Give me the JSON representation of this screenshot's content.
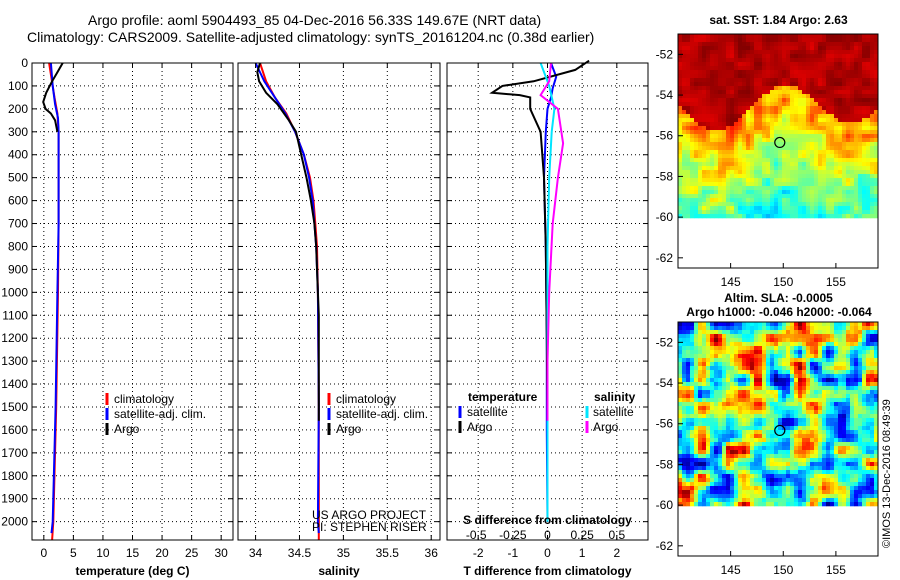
{
  "title": {
    "line1": "Argo profile: aoml 5904493_85 04-Dec-2016 56.33S 149.67E (NRT data)",
    "line2": "Climatology: CARS2009. Satellite-adjusted climatology: synTS_20161204.nc (0.38d earlier)"
  },
  "colors": {
    "climatology": "#ff0000",
    "satellite": "#0000ff",
    "argo": "#000000",
    "sat_salinity": "#00e5ff",
    "argo_salinity": "#ff00ff"
  },
  "chart_data": [
    {
      "id": "temperature",
      "type": "line",
      "xlabel": "temperature (deg C)",
      "ylabel": "",
      "xlim": [
        -2,
        32
      ],
      "ylim": [
        2080,
        0
      ],
      "xticks": [
        0,
        5,
        10,
        15,
        20,
        25,
        30
      ],
      "xtick_labels": [
        "0",
        "5",
        "10",
        "15",
        "20",
        "25",
        "30"
      ],
      "yticks": [
        0,
        100,
        200,
        300,
        400,
        500,
        600,
        700,
        800,
        900,
        1000,
        1100,
        1200,
        1300,
        1400,
        1500,
        1600,
        1700,
        1800,
        1900,
        2000
      ],
      "grid": "dotted",
      "legend": {
        "placement": "lower-right",
        "entries": [
          "climatology",
          "satellite-adj. clim.",
          "Argo"
        ]
      },
      "series": [
        {
          "name": "climatology",
          "color": "#ff0000",
          "points": [
            [
              0.9,
              0
            ],
            [
              1.2,
              50
            ],
            [
              1.8,
              150
            ],
            [
              2.3,
              220
            ],
            [
              2.5,
              300
            ],
            [
              2.5,
              700
            ],
            [
              2.4,
              1000
            ],
            [
              2.1,
              1500
            ],
            [
              1.6,
              2000
            ],
            [
              1.4,
              2080
            ]
          ]
        },
        {
          "name": "satellite-adj. clim.",
          "color": "#0000ff",
          "points": [
            [
              1.2,
              0
            ],
            [
              1.5,
              100
            ],
            [
              1.9,
              180
            ],
            [
              2.4,
              240
            ],
            [
              2.5,
              300
            ],
            [
              2.5,
              700
            ],
            [
              2.3,
              1000
            ],
            [
              2.0,
              1500
            ],
            [
              1.5,
              2000
            ],
            [
              1.3,
              2050
            ]
          ]
        },
        {
          "name": "Argo",
          "color": "#000000",
          "points": [
            [
              3.2,
              0
            ],
            [
              2.3,
              40
            ],
            [
              1.4,
              80
            ],
            [
              0.4,
              130
            ],
            [
              -0.1,
              170
            ],
            [
              0.3,
              200
            ],
            [
              1.2,
              220
            ],
            [
              1.9,
              250
            ],
            [
              2.3,
              300
            ]
          ]
        }
      ]
    },
    {
      "id": "salinity",
      "type": "line",
      "xlabel": "salinity",
      "xlim": [
        33.8,
        36.1
      ],
      "ylim": [
        2080,
        0
      ],
      "xticks": [
        34,
        34.5,
        35,
        35.5,
        36
      ],
      "xtick_labels": [
        "34",
        "34.5",
        "35",
        "35.5",
        "36"
      ],
      "grid": "dotted",
      "legend": {
        "placement": "lower-right",
        "entries": [
          "climatology",
          "satellite-adj. clim.",
          "Argo"
        ]
      },
      "annotation": [
        "US ARGO PROJECT",
        "PI: STEPHEN RISER"
      ],
      "series": [
        {
          "name": "climatology",
          "color": "#ff0000",
          "points": [
            [
              34.05,
              0
            ],
            [
              34.12,
              80
            ],
            [
              34.22,
              150
            ],
            [
              34.35,
              220
            ],
            [
              34.45,
              300
            ],
            [
              34.55,
              400
            ],
            [
              34.62,
              500
            ],
            [
              34.66,
              600
            ],
            [
              34.68,
              700
            ],
            [
              34.7,
              800
            ],
            [
              34.71,
              1000
            ],
            [
              34.72,
              1500
            ],
            [
              34.72,
              2080
            ]
          ]
        },
        {
          "name": "satellite-adj. clim.",
          "color": "#0000ff",
          "points": [
            [
              34.0,
              0
            ],
            [
              34.1,
              80
            ],
            [
              34.22,
              150
            ],
            [
              34.34,
              220
            ],
            [
              34.45,
              300
            ],
            [
              34.55,
              400
            ],
            [
              34.61,
              500
            ],
            [
              34.65,
              600
            ],
            [
              34.67,
              700
            ],
            [
              34.69,
              800
            ],
            [
              34.71,
              1000
            ],
            [
              34.72,
              1500
            ],
            [
              34.71,
              2000
            ],
            [
              34.72,
              2050
            ]
          ]
        },
        {
          "name": "Argo",
          "color": "#000000",
          "points": [
            [
              34.05,
              0
            ],
            [
              34.02,
              40
            ],
            [
              34.04,
              80
            ],
            [
              34.12,
              130
            ],
            [
              34.25,
              180
            ],
            [
              34.38,
              250
            ],
            [
              34.46,
              300
            ],
            [
              34.52,
              400
            ],
            [
              34.58,
              500
            ],
            [
              34.63,
              600
            ],
            [
              34.67,
              700
            ],
            [
              34.69,
              800
            ],
            [
              34.7,
              900
            ],
            [
              34.71,
              1000
            ],
            [
              34.72,
              1100
            ],
            [
              34.72,
              1250
            ],
            [
              34.72,
              1560
            ]
          ]
        }
      ]
    },
    {
      "id": "difference",
      "type": "line",
      "xlabel": "T difference from climatology",
      "xlabel_top": "S difference from climatology",
      "xlim": [
        -2.9,
        2.9
      ],
      "ylim": [
        2080,
        0
      ],
      "xticks": [
        -2,
        -1,
        0,
        1,
        2
      ],
      "xtick_labels": [
        "-2",
        "-1",
        "0",
        "1",
        "2"
      ],
      "xticks_top": [
        -2,
        -1,
        0,
        1,
        2
      ],
      "xtick_labels_top": [
        "-0.5",
        "-0.25",
        "0",
        "0.25",
        "0.5"
      ],
      "grid": "dotted",
      "legend": {
        "placement": "lower",
        "left_title": "temperature",
        "right_title": "salinity",
        "left_entries": [
          "satellite",
          "Argo"
        ],
        "right_entries": [
          "satellite",
          "Argo"
        ]
      },
      "series": [
        {
          "name": "temperature satellite",
          "color": "#0000ff",
          "points": [
            [
              0.1,
              0
            ],
            [
              0.25,
              60
            ],
            [
              0.15,
              110
            ],
            [
              0.1,
              150
            ],
            [
              0.0,
              200
            ],
            [
              -0.05,
              300
            ],
            [
              -0.1,
              500
            ],
            [
              -0.05,
              800
            ],
            [
              -0.02,
              1200
            ],
            [
              -0.02,
              1600
            ],
            [
              0.0,
              2000
            ]
          ]
        },
        {
          "name": "temperature Argo",
          "color": "#000000",
          "points": [
            [
              1.2,
              -10
            ],
            [
              0.8,
              30
            ],
            [
              -0.4,
              80
            ],
            [
              -1.3,
              100
            ],
            [
              -1.6,
              130
            ],
            [
              -0.8,
              140
            ],
            [
              -0.5,
              150
            ],
            [
              -0.5,
              200
            ],
            [
              -0.2,
              300
            ],
            [
              -0.1,
              500
            ],
            [
              -0.05,
              800
            ],
            [
              -0.02,
              1200
            ],
            [
              0.0,
              1560
            ]
          ]
        },
        {
          "name": "salinity satellite",
          "color": "#00e5ff",
          "points": [
            [
              -0.2,
              0
            ],
            [
              0.05,
              100
            ],
            [
              0.2,
              200
            ],
            [
              0.12,
              300
            ],
            [
              0.05,
              500
            ],
            [
              0.0,
              800
            ],
            [
              0.0,
              1200
            ],
            [
              0.0,
              1600
            ],
            [
              0.0,
              2000
            ]
          ]
        },
        {
          "name": "salinity Argo",
          "color": "#ff00ff",
          "points": [
            [
              0.1,
              0
            ],
            [
              0.05,
              80
            ],
            [
              -0.2,
              140
            ],
            [
              0.3,
              200
            ],
            [
              0.45,
              350
            ],
            [
              0.3,
              500
            ],
            [
              0.15,
              700
            ],
            [
              0.05,
              1000
            ],
            [
              0.0,
              1300
            ],
            [
              0.0,
              1560
            ]
          ]
        }
      ]
    },
    {
      "id": "sst-map",
      "type": "heatmap",
      "title": "sat. SST: 1.84 Argo: 2.63",
      "xlim": [
        140,
        159
      ],
      "ylim": [
        -62.5,
        -51
      ],
      "xticks": [
        145,
        150,
        155
      ],
      "xtick_labels": [
        "145",
        "150",
        "155"
      ],
      "yticks": [
        -52,
        -54,
        -56,
        -58,
        -60,
        -62
      ],
      "ytick_labels": [
        "-52",
        "-54",
        "-56",
        "-58",
        "-60",
        "-62"
      ],
      "marker": [
        149.67,
        -56.33
      ]
    },
    {
      "id": "sla-map",
      "type": "heatmap",
      "title": "Altim. SLA: -0.0005",
      "subtitle": "Argo h1000: -0.046 h2000: -0.064",
      "xlim": [
        140,
        159
      ],
      "ylim": [
        -62.5,
        -51
      ],
      "xticks": [
        145,
        150,
        155
      ],
      "xtick_labels": [
        "145",
        "150",
        "155"
      ],
      "yticks": [
        -52,
        -54,
        -56,
        -58,
        -60,
        -62
      ],
      "ytick_labels": [
        "-52",
        "-54",
        "-56",
        "-58",
        "-60",
        "-62"
      ],
      "marker": [
        149.67,
        -56.33
      ]
    }
  ],
  "stamp": "©IMOS 13-Dec-2016 08:49:39"
}
